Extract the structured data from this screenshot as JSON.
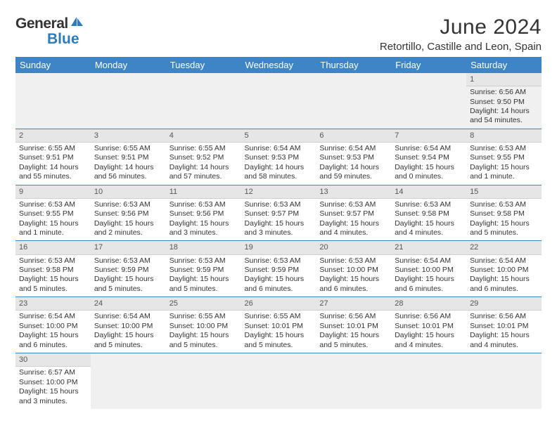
{
  "logo": {
    "text1": "General",
    "text2": "Blue"
  },
  "title": "June 2024",
  "location": "Retortillo, Castille and Leon, Spain",
  "style": {
    "header_bg": "#3d85c6",
    "header_fg": "#ffffff",
    "daynum_bg": "#e6e6e6",
    "empty_bg": "#f0f0f0",
    "row_border": "#3d85c6",
    "body_text": "#333333",
    "logo_accent": "#2b7bbd",
    "font_size_title": 30,
    "font_size_location": 15,
    "font_size_header": 13,
    "font_size_cell": 10.5
  },
  "weekdays": [
    "Sunday",
    "Monday",
    "Tuesday",
    "Wednesday",
    "Thursday",
    "Friday",
    "Saturday"
  ],
  "days": {
    "1": {
      "sunrise": "6:56 AM",
      "sunset": "9:50 PM",
      "daylight": "14 hours and 54 minutes."
    },
    "2": {
      "sunrise": "6:55 AM",
      "sunset": "9:51 PM",
      "daylight": "14 hours and 55 minutes."
    },
    "3": {
      "sunrise": "6:55 AM",
      "sunset": "9:51 PM",
      "daylight": "14 hours and 56 minutes."
    },
    "4": {
      "sunrise": "6:55 AM",
      "sunset": "9:52 PM",
      "daylight": "14 hours and 57 minutes."
    },
    "5": {
      "sunrise": "6:54 AM",
      "sunset": "9:53 PM",
      "daylight": "14 hours and 58 minutes."
    },
    "6": {
      "sunrise": "6:54 AM",
      "sunset": "9:53 PM",
      "daylight": "14 hours and 59 minutes."
    },
    "7": {
      "sunrise": "6:54 AM",
      "sunset": "9:54 PM",
      "daylight": "15 hours and 0 minutes."
    },
    "8": {
      "sunrise": "6:53 AM",
      "sunset": "9:55 PM",
      "daylight": "15 hours and 1 minute."
    },
    "9": {
      "sunrise": "6:53 AM",
      "sunset": "9:55 PM",
      "daylight": "15 hours and 1 minute."
    },
    "10": {
      "sunrise": "6:53 AM",
      "sunset": "9:56 PM",
      "daylight": "15 hours and 2 minutes."
    },
    "11": {
      "sunrise": "6:53 AM",
      "sunset": "9:56 PM",
      "daylight": "15 hours and 3 minutes."
    },
    "12": {
      "sunrise": "6:53 AM",
      "sunset": "9:57 PM",
      "daylight": "15 hours and 3 minutes."
    },
    "13": {
      "sunrise": "6:53 AM",
      "sunset": "9:57 PM",
      "daylight": "15 hours and 4 minutes."
    },
    "14": {
      "sunrise": "6:53 AM",
      "sunset": "9:58 PM",
      "daylight": "15 hours and 4 minutes."
    },
    "15": {
      "sunrise": "6:53 AM",
      "sunset": "9:58 PM",
      "daylight": "15 hours and 5 minutes."
    },
    "16": {
      "sunrise": "6:53 AM",
      "sunset": "9:58 PM",
      "daylight": "15 hours and 5 minutes."
    },
    "17": {
      "sunrise": "6:53 AM",
      "sunset": "9:59 PM",
      "daylight": "15 hours and 5 minutes."
    },
    "18": {
      "sunrise": "6:53 AM",
      "sunset": "9:59 PM",
      "daylight": "15 hours and 5 minutes."
    },
    "19": {
      "sunrise": "6:53 AM",
      "sunset": "9:59 PM",
      "daylight": "15 hours and 6 minutes."
    },
    "20": {
      "sunrise": "6:53 AM",
      "sunset": "10:00 PM",
      "daylight": "15 hours and 6 minutes."
    },
    "21": {
      "sunrise": "6:54 AM",
      "sunset": "10:00 PM",
      "daylight": "15 hours and 6 minutes."
    },
    "22": {
      "sunrise": "6:54 AM",
      "sunset": "10:00 PM",
      "daylight": "15 hours and 6 minutes."
    },
    "23": {
      "sunrise": "6:54 AM",
      "sunset": "10:00 PM",
      "daylight": "15 hours and 6 minutes."
    },
    "24": {
      "sunrise": "6:54 AM",
      "sunset": "10:00 PM",
      "daylight": "15 hours and 5 minutes."
    },
    "25": {
      "sunrise": "6:55 AM",
      "sunset": "10:00 PM",
      "daylight": "15 hours and 5 minutes."
    },
    "26": {
      "sunrise": "6:55 AM",
      "sunset": "10:01 PM",
      "daylight": "15 hours and 5 minutes."
    },
    "27": {
      "sunrise": "6:56 AM",
      "sunset": "10:01 PM",
      "daylight": "15 hours and 5 minutes."
    },
    "28": {
      "sunrise": "6:56 AM",
      "sunset": "10:01 PM",
      "daylight": "15 hours and 4 minutes."
    },
    "29": {
      "sunrise": "6:56 AM",
      "sunset": "10:01 PM",
      "daylight": "15 hours and 4 minutes."
    },
    "30": {
      "sunrise": "6:57 AM",
      "sunset": "10:00 PM",
      "daylight": "15 hours and 3 minutes."
    }
  },
  "labels": {
    "sunrise": "Sunrise: ",
    "sunset": "Sunset: ",
    "daylight": "Daylight: "
  },
  "grid": [
    [
      null,
      null,
      null,
      null,
      null,
      null,
      "1"
    ],
    [
      "2",
      "3",
      "4",
      "5",
      "6",
      "7",
      "8"
    ],
    [
      "9",
      "10",
      "11",
      "12",
      "13",
      "14",
      "15"
    ],
    [
      "16",
      "17",
      "18",
      "19",
      "20",
      "21",
      "22"
    ],
    [
      "23",
      "24",
      "25",
      "26",
      "27",
      "28",
      "29"
    ],
    [
      "30",
      null,
      null,
      null,
      null,
      null,
      null
    ]
  ]
}
